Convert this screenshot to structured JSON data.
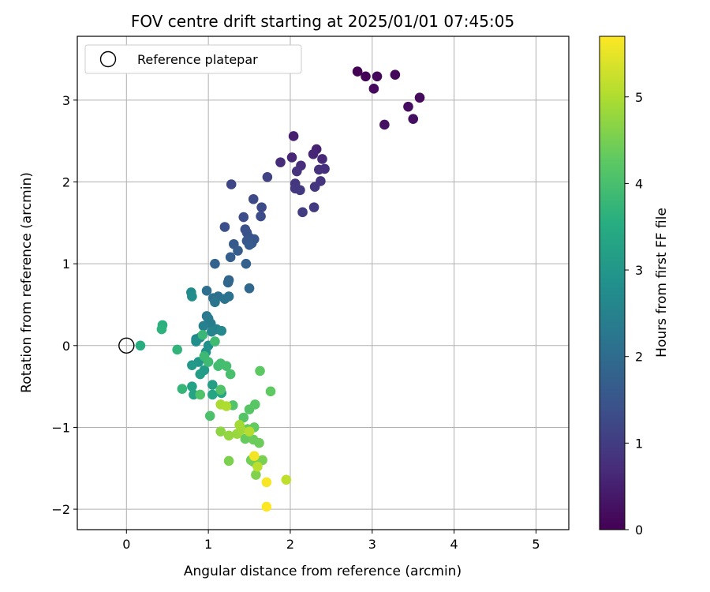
{
  "chart_data": {
    "type": "scatter",
    "title": "FOV centre drift starting at 2025/01/01 07:45:05",
    "xlabel": "Angular distance from reference (arcmin)",
    "ylabel": "Rotation from reference (arcmin)",
    "xlim": [
      -0.6,
      5.4
    ],
    "ylim": [
      -2.25,
      3.78
    ],
    "xticks": [
      0,
      1,
      2,
      3,
      4,
      5
    ],
    "yticks": [
      -2,
      -1,
      0,
      1,
      2,
      3
    ],
    "grid": true,
    "legend": {
      "position": "top-left",
      "entries": [
        "Reference platepar"
      ]
    },
    "reference_point": {
      "x": 0,
      "y": 0,
      "marker": "open-circle",
      "color": "#000000"
    },
    "colorbar": {
      "label": "Hours from first FF file",
      "colormap": "viridis",
      "range": [
        0,
        5.7
      ],
      "ticks": [
        0,
        1,
        2,
        3,
        4,
        5
      ]
    },
    "series": [
      {
        "marker": "filled-circle",
        "color_by": "hours",
        "points": [
          {
            "x": 2.82,
            "y": 3.35,
            "c": 0.02
          },
          {
            "x": 2.92,
            "y": 3.29,
            "c": 0.05
          },
          {
            "x": 3.06,
            "y": 3.29,
            "c": 0.08
          },
          {
            "x": 3.28,
            "y": 3.31,
            "c": 0.11
          },
          {
            "x": 3.02,
            "y": 3.14,
            "c": 0.14
          },
          {
            "x": 3.58,
            "y": 3.03,
            "c": 0.17
          },
          {
            "x": 3.44,
            "y": 2.92,
            "c": 0.2
          },
          {
            "x": 3.5,
            "y": 2.77,
            "c": 0.23
          },
          {
            "x": 3.15,
            "y": 2.7,
            "c": 0.26
          },
          {
            "x": 2.04,
            "y": 2.56,
            "c": 0.5
          },
          {
            "x": 2.32,
            "y": 2.4,
            "c": 0.55
          },
          {
            "x": 2.28,
            "y": 2.34,
            "c": 0.6
          },
          {
            "x": 2.02,
            "y": 2.3,
            "c": 0.62
          },
          {
            "x": 2.39,
            "y": 2.28,
            "c": 0.65
          },
          {
            "x": 1.88,
            "y": 2.24,
            "c": 0.7
          },
          {
            "x": 2.13,
            "y": 2.2,
            "c": 0.72
          },
          {
            "x": 2.42,
            "y": 2.16,
            "c": 0.75
          },
          {
            "x": 2.35,
            "y": 2.15,
            "c": 0.78
          },
          {
            "x": 2.08,
            "y": 2.13,
            "c": 0.8
          },
          {
            "x": 2.37,
            "y": 2.01,
            "c": 0.85
          },
          {
            "x": 2.06,
            "y": 1.98,
            "c": 0.88
          },
          {
            "x": 2.3,
            "y": 1.94,
            "c": 0.9
          },
          {
            "x": 2.06,
            "y": 1.92,
            "c": 0.92
          },
          {
            "x": 2.12,
            "y": 1.9,
            "c": 0.95
          },
          {
            "x": 2.29,
            "y": 1.69,
            "c": 0.98
          },
          {
            "x": 2.15,
            "y": 1.63,
            "c": 1.0
          },
          {
            "x": 1.72,
            "y": 2.06,
            "c": 1.15
          },
          {
            "x": 1.28,
            "y": 1.97,
            "c": 1.2
          },
          {
            "x": 1.55,
            "y": 1.79,
            "c": 1.25
          },
          {
            "x": 1.65,
            "y": 1.69,
            "c": 1.28
          },
          {
            "x": 1.64,
            "y": 1.58,
            "c": 1.3
          },
          {
            "x": 1.43,
            "y": 1.57,
            "c": 1.33
          },
          {
            "x": 1.2,
            "y": 1.45,
            "c": 1.36
          },
          {
            "x": 1.45,
            "y": 1.42,
            "c": 1.4
          },
          {
            "x": 1.47,
            "y": 1.38,
            "c": 1.43
          },
          {
            "x": 1.5,
            "y": 1.32,
            "c": 1.46
          },
          {
            "x": 1.56,
            "y": 1.3,
            "c": 1.5
          },
          {
            "x": 1.47,
            "y": 1.28,
            "c": 1.53
          },
          {
            "x": 1.53,
            "y": 1.25,
            "c": 1.56
          },
          {
            "x": 1.31,
            "y": 1.24,
            "c": 1.6
          },
          {
            "x": 1.5,
            "y": 1.23,
            "c": 1.63
          },
          {
            "x": 1.36,
            "y": 1.16,
            "c": 1.66
          },
          {
            "x": 1.27,
            "y": 1.08,
            "c": 1.7
          },
          {
            "x": 1.46,
            "y": 1.0,
            "c": 1.75
          },
          {
            "x": 1.08,
            "y": 1.0,
            "c": 1.8
          },
          {
            "x": 1.25,
            "y": 0.8,
            "c": 1.85
          },
          {
            "x": 1.24,
            "y": 0.77,
            "c": 1.88
          },
          {
            "x": 1.5,
            "y": 0.7,
            "c": 1.92
          },
          {
            "x": 0.98,
            "y": 0.67,
            "c": 2.05
          },
          {
            "x": 1.12,
            "y": 0.6,
            "c": 2.08
          },
          {
            "x": 1.06,
            "y": 0.58,
            "c": 2.1
          },
          {
            "x": 1.25,
            "y": 0.6,
            "c": 2.12
          },
          {
            "x": 1.2,
            "y": 0.57,
            "c": 2.15
          },
          {
            "x": 1.08,
            "y": 0.53,
            "c": 2.18
          },
          {
            "x": 0.98,
            "y": 0.36,
            "c": 2.3
          },
          {
            "x": 1.0,
            "y": 0.33,
            "c": 2.35
          },
          {
            "x": 1.03,
            "y": 0.27,
            "c": 2.4
          },
          {
            "x": 0.94,
            "y": 0.24,
            "c": 2.45
          },
          {
            "x": 1.1,
            "y": 0.2,
            "c": 2.5
          },
          {
            "x": 1.04,
            "y": 0.17,
            "c": 2.55
          },
          {
            "x": 0.85,
            "y": 0.08,
            "c": 2.6
          },
          {
            "x": 0.9,
            "y": 0.1,
            "c": 2.62
          },
          {
            "x": 1.16,
            "y": 0.18,
            "c": 2.65
          },
          {
            "x": 0.79,
            "y": 0.65,
            "c": 2.7
          },
          {
            "x": 0.8,
            "y": 0.6,
            "c": 2.75
          },
          {
            "x": 0.85,
            "y": 0.05,
            "c": 2.8
          },
          {
            "x": 1.0,
            "y": 0.0,
            "c": 2.85
          },
          {
            "x": 0.97,
            "y": -0.08,
            "c": 2.9
          },
          {
            "x": 0.88,
            "y": -0.2,
            "c": 3.0
          },
          {
            "x": 0.8,
            "y": -0.24,
            "c": 3.05
          },
          {
            "x": 0.95,
            "y": -0.3,
            "c": 3.1
          },
          {
            "x": 0.9,
            "y": -0.35,
            "c": 3.15
          },
          {
            "x": 1.05,
            "y": -0.48,
            "c": 3.2
          },
          {
            "x": 0.8,
            "y": -0.5,
            "c": 3.25
          },
          {
            "x": 0.82,
            "y": -0.6,
            "c": 3.3
          },
          {
            "x": 1.05,
            "y": -0.6,
            "c": 3.35
          },
          {
            "x": 1.16,
            "y": -0.58,
            "c": 3.4
          },
          {
            "x": 0.17,
            "y": 0.0,
            "c": 3.55
          },
          {
            "x": 0.44,
            "y": 0.25,
            "c": 3.6
          },
          {
            "x": 0.43,
            "y": 0.2,
            "c": 3.63
          },
          {
            "x": 0.62,
            "y": -0.05,
            "c": 3.7
          },
          {
            "x": 0.68,
            "y": -0.53,
            "c": 3.75
          },
          {
            "x": 0.93,
            "y": 0.13,
            "c": 3.8
          },
          {
            "x": 0.95,
            "y": -0.13,
            "c": 3.85
          },
          {
            "x": 1.0,
            "y": -0.2,
            "c": 3.88
          },
          {
            "x": 1.08,
            "y": 0.05,
            "c": 3.9
          },
          {
            "x": 1.12,
            "y": -0.25,
            "c": 3.92
          },
          {
            "x": 1.15,
            "y": -0.22,
            "c": 3.95
          },
          {
            "x": 1.22,
            "y": -0.25,
            "c": 3.97
          },
          {
            "x": 1.27,
            "y": -0.35,
            "c": 4.0
          },
          {
            "x": 1.02,
            "y": -0.86,
            "c": 4.05
          },
          {
            "x": 0.9,
            "y": -0.6,
            "c": 4.08
          },
          {
            "x": 1.15,
            "y": -0.54,
            "c": 4.1
          },
          {
            "x": 1.3,
            "y": -0.73,
            "c": 4.12
          },
          {
            "x": 1.43,
            "y": -0.88,
            "c": 4.15
          },
          {
            "x": 1.5,
            "y": -0.78,
            "c": 4.18
          },
          {
            "x": 1.57,
            "y": -0.72,
            "c": 4.2
          },
          {
            "x": 1.63,
            "y": -0.31,
            "c": 4.25
          },
          {
            "x": 1.76,
            "y": -0.56,
            "c": 4.28
          },
          {
            "x": 1.56,
            "y": -1.0,
            "c": 4.3
          },
          {
            "x": 1.48,
            "y": -1.02,
            "c": 4.33
          },
          {
            "x": 1.45,
            "y": -1.14,
            "c": 4.35
          },
          {
            "x": 1.55,
            "y": -1.15,
            "c": 4.38
          },
          {
            "x": 1.62,
            "y": -1.19,
            "c": 4.4
          },
          {
            "x": 1.52,
            "y": -1.4,
            "c": 4.45
          },
          {
            "x": 1.55,
            "y": -1.42,
            "c": 4.5
          },
          {
            "x": 1.66,
            "y": -1.4,
            "c": 4.52
          },
          {
            "x": 1.25,
            "y": -1.41,
            "c": 4.55
          },
          {
            "x": 1.58,
            "y": -1.58,
            "c": 4.58
          },
          {
            "x": 1.15,
            "y": -1.05,
            "c": 4.7
          },
          {
            "x": 1.25,
            "y": -1.1,
            "c": 4.75
          },
          {
            "x": 1.35,
            "y": -1.08,
            "c": 4.8
          },
          {
            "x": 1.4,
            "y": -1.03,
            "c": 4.85
          },
          {
            "x": 1.38,
            "y": -0.97,
            "c": 4.9
          },
          {
            "x": 1.15,
            "y": -0.72,
            "c": 4.95
          },
          {
            "x": 1.22,
            "y": -0.74,
            "c": 5.0
          },
          {
            "x": 1.5,
            "y": -1.05,
            "c": 5.05
          },
          {
            "x": 1.6,
            "y": -1.48,
            "c": 5.1
          },
          {
            "x": 1.95,
            "y": -1.64,
            "c": 5.15
          },
          {
            "x": 1.56,
            "y": -1.35,
            "c": 5.6
          },
          {
            "x": 1.71,
            "y": -1.67,
            "c": 5.65
          },
          {
            "x": 1.71,
            "y": -1.97,
            "c": 5.7
          }
        ]
      }
    ]
  }
}
